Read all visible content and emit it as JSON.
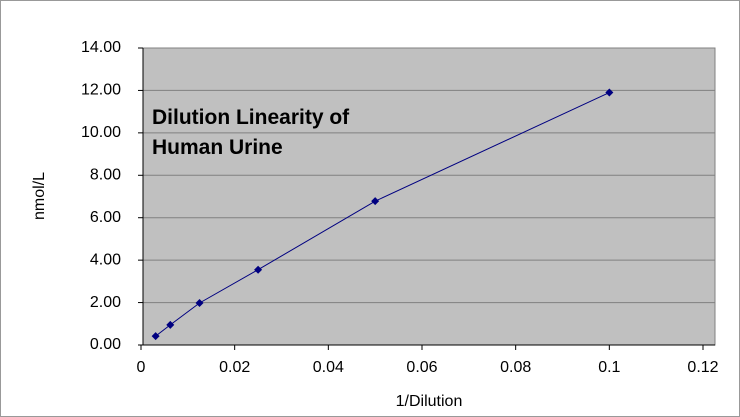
{
  "chart_data": {
    "type": "scatter",
    "title": [
      "Dilution Linearity of",
      "Human Urine"
    ],
    "xlabel": "1/Dilution",
    "ylabel": "nmol/L",
    "series": [
      {
        "name": "Human Urine",
        "color": "#000080",
        "x": [
          0.003125,
          0.00625,
          0.0125,
          0.025,
          0.05,
          0.1
        ],
        "values": [
          0.42,
          0.95,
          1.98,
          3.55,
          6.78,
          11.9
        ]
      }
    ],
    "xlim": [
      0,
      0.12
    ],
    "xticks": [
      0,
      0.02,
      0.04,
      0.06,
      0.08,
      0.1,
      0.12
    ],
    "ylim": [
      0,
      14
    ],
    "yticks": [
      {
        "value": 0,
        "label": "0.00"
      },
      {
        "value": 2,
        "label": "2.00"
      },
      {
        "value": 4,
        "label": "4.00"
      },
      {
        "value": 6,
        "label": "6.00"
      },
      {
        "value": 8,
        "label": "8.00"
      },
      {
        "value": 10,
        "label": "10.00"
      },
      {
        "value": 12,
        "label": "12.00"
      },
      {
        "value": 14,
        "label": "14.00"
      }
    ],
    "grid": true
  }
}
